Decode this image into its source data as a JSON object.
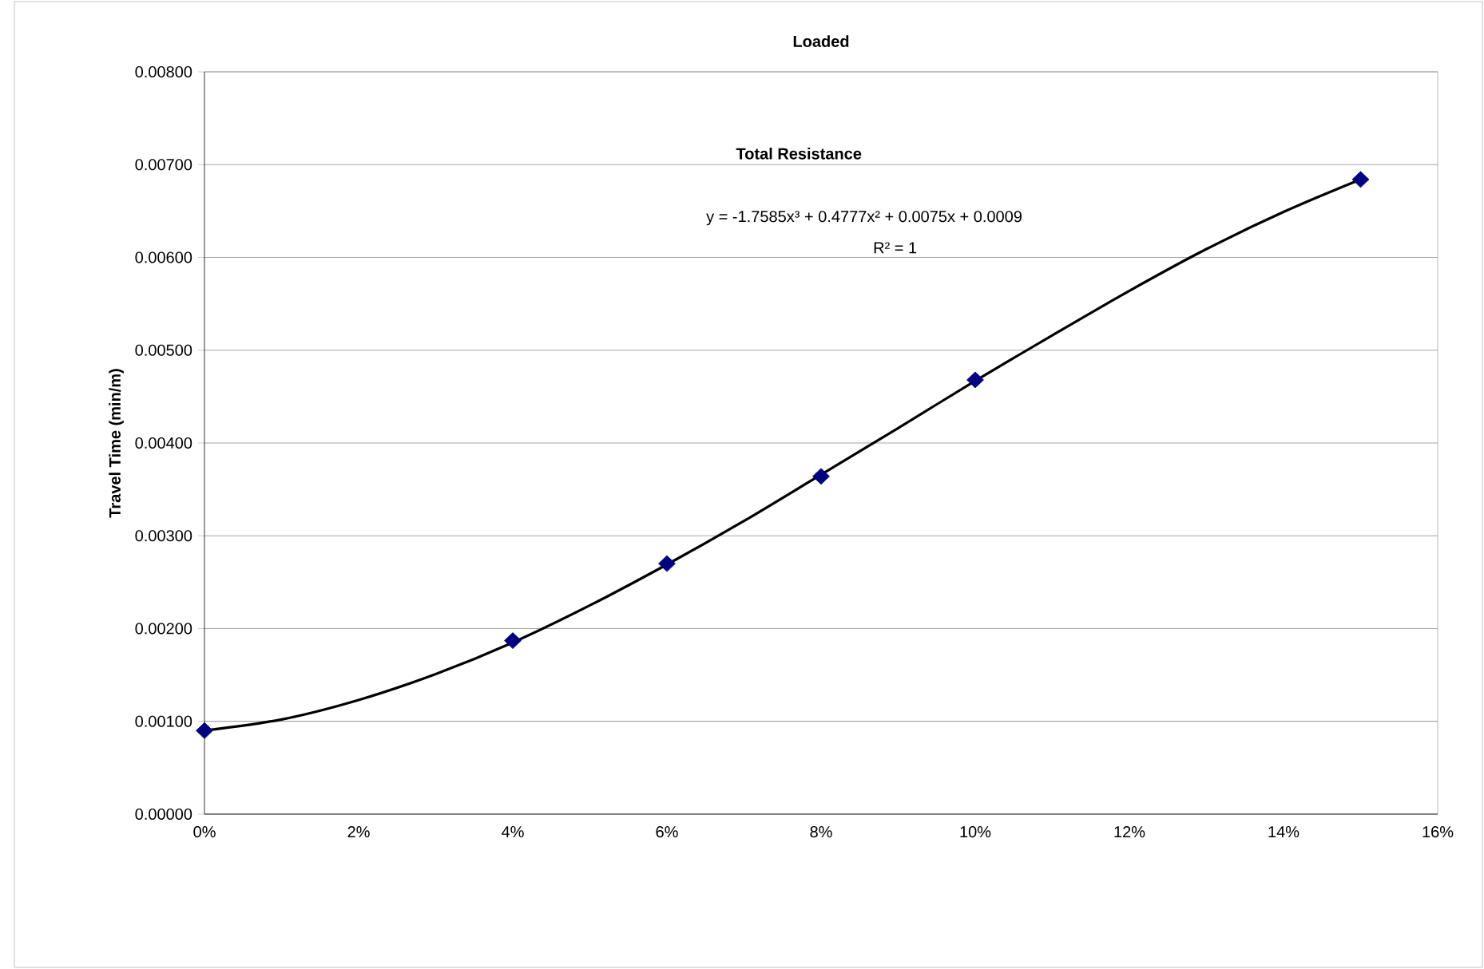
{
  "chart_data": {
    "type": "scatter",
    "title": "Loaded",
    "ylabel": "Travel Time (min/m)",
    "x": [
      0,
      0.04,
      0.06,
      0.08,
      0.1,
      0.15
    ],
    "series": [
      {
        "color": "#000080",
        "marker": "diamond",
        "values": [
          0.0009,
          0.00187,
          0.0027,
          0.00364,
          0.00468,
          0.00684
        ]
      },
      {
        "type": "line",
        "color": "#000000",
        "marker": "none",
        "line_style": "solid",
        "x": [
          0,
          0.01,
          0.02,
          0.03,
          0.04,
          0.05,
          0.06,
          0.07,
          0.08,
          0.09,
          0.1,
          0.11,
          0.12,
          0.13,
          0.14,
          0.15
        ],
        "values": [
          0.0009,
          0.00102,
          0.00123,
          0.00151,
          0.00185,
          0.00225,
          0.00269,
          0.00316,
          0.00366,
          0.00416,
          0.00467,
          0.00516,
          0.00564,
          0.00609,
          0.00649,
          0.00684
        ]
      }
    ],
    "xlim": [
      0,
      0.16
    ],
    "xticks": [
      {
        "value": 0,
        "label": "0%"
      },
      {
        "value": 0.02,
        "label": "2%"
      },
      {
        "value": 0.04,
        "label": "4%"
      },
      {
        "value": 0.06,
        "label": "6%"
      },
      {
        "value": 0.08,
        "label": "8%"
      },
      {
        "value": 0.1,
        "label": "10%"
      },
      {
        "value": 0.12,
        "label": "12%"
      },
      {
        "value": 0.14,
        "label": "14%"
      },
      {
        "value": 0.16,
        "label": "16%"
      }
    ],
    "ylim": [
      0,
      0.008
    ],
    "yticks": [
      {
        "value": 0,
        "label": "0.00000"
      },
      {
        "value": 0.001,
        "label": "0.00100"
      },
      {
        "value": 0.002,
        "label": "0.00200"
      },
      {
        "value": 0.003,
        "label": "0.00300"
      },
      {
        "value": 0.004,
        "label": "0.00400"
      },
      {
        "value": 0.005,
        "label": "0.00500"
      },
      {
        "value": 0.006,
        "label": "0.00600"
      },
      {
        "value": 0.007,
        "label": "0.00700"
      },
      {
        "value": 0.008,
        "label": "0.00800"
      }
    ],
    "grid": "y",
    "annotations": [
      "Total Resistance",
      "y = -1.7585x³ + 0.4777x² + 0.0075x + 0.0009",
      "R² = 1"
    ]
  }
}
